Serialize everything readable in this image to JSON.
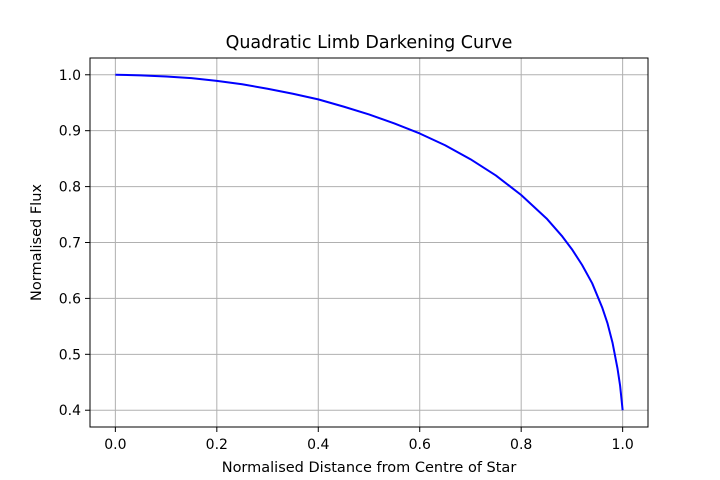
{
  "chart_data": {
    "type": "line",
    "title": "Quadratic Limb Darkening Curve",
    "xlabel": "Normalised Distance from Centre of Star",
    "ylabel": "Normalised Flux",
    "xlim": [
      -0.05,
      1.05
    ],
    "ylim": [
      0.37,
      1.03
    ],
    "x_ticks": [
      0.0,
      0.2,
      0.4,
      0.6,
      0.8,
      1.0
    ],
    "x_tick_labels": [
      "0.0",
      "0.2",
      "0.4",
      "0.6",
      "0.8",
      "1.0"
    ],
    "y_ticks": [
      0.4,
      0.5,
      0.6,
      0.7,
      0.8,
      0.9,
      1.0
    ],
    "y_tick_labels": [
      "0.4",
      "0.5",
      "0.6",
      "0.7",
      "0.8",
      "0.9",
      "1.0"
    ],
    "grid": true,
    "legend": "none",
    "series": [
      {
        "color": "#0000ff",
        "x": [
          0.0,
          0.05,
          0.1,
          0.15,
          0.2,
          0.25,
          0.3,
          0.35,
          0.4,
          0.45,
          0.5,
          0.55,
          0.6,
          0.65,
          0.7,
          0.75,
          0.8,
          0.85,
          0.88,
          0.9,
          0.92,
          0.94,
          0.96,
          0.97,
          0.98,
          0.99,
          0.995,
          1.0
        ],
        "y": [
          1.0,
          0.999,
          0.997,
          0.994,
          0.989,
          0.983,
          0.975,
          0.966,
          0.956,
          0.943,
          0.929,
          0.913,
          0.895,
          0.874,
          0.849,
          0.82,
          0.785,
          0.743,
          0.712,
          0.688,
          0.66,
          0.627,
          0.583,
          0.556,
          0.521,
          0.474,
          0.444,
          0.4
        ]
      }
    ]
  }
}
